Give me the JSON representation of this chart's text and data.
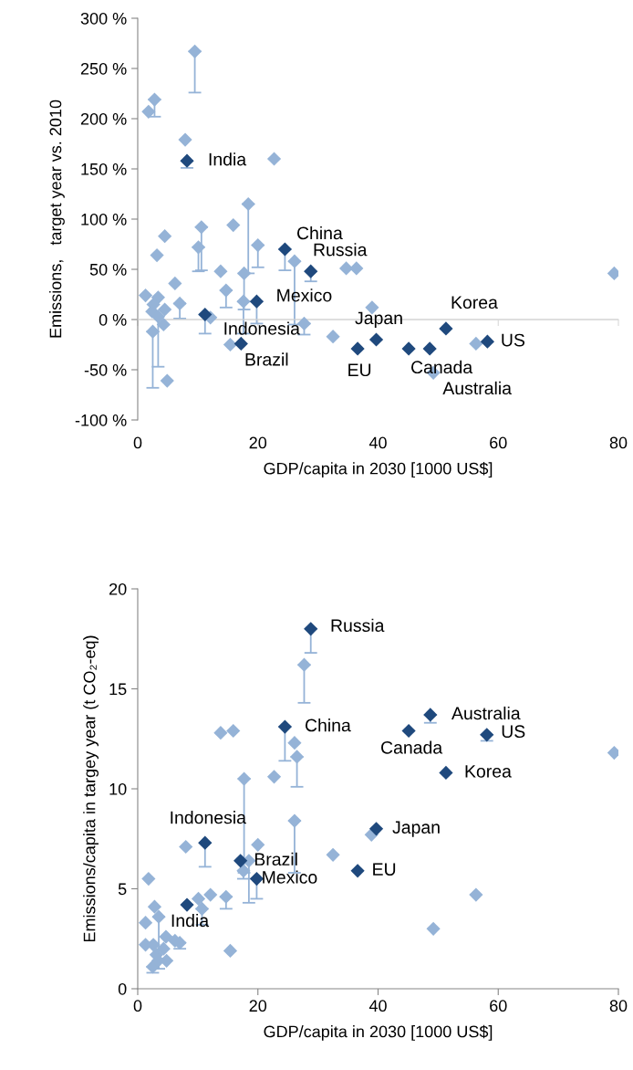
{
  "chart_data": [
    {
      "type": "scatter",
      "xlabel": "GDP/capita in 2030 [1000 US$]",
      "ylabel": "Emissions,   target year vs. 2010",
      "xlim": [
        0,
        80
      ],
      "xticks": [
        0,
        20,
        40,
        60,
        80
      ],
      "ylim": [
        -100,
        300
      ],
      "yticks": [
        {
          "value": -100,
          "label": "-100 %"
        },
        {
          "value": -50,
          "label": "-50 %"
        },
        {
          "value": 0,
          "label": "0 %"
        },
        {
          "value": 50,
          "label": "50 %"
        },
        {
          "value": 100,
          "label": "100 %"
        },
        {
          "value": 150,
          "label": "150 %"
        },
        {
          "value": 200,
          "label": "200 %"
        },
        {
          "value": 250,
          "label": "250 %"
        },
        {
          "value": 300,
          "label": "300 %"
        }
      ],
      "grid": false,
      "legend": false,
      "marker": "diamond",
      "ref_lines": [
        {
          "axis": "y",
          "value": 0,
          "color": "#d9d9d9"
        }
      ],
      "series": [
        {
          "color": "#95b3d7",
          "x": [
            9.5,
            2.8,
            1.8,
            7.9,
            22.7,
            18.4,
            15.9,
            10.6,
            10.1,
            4.5,
            3.2,
            20.0,
            26.1,
            13.8,
            17.7,
            6.2,
            14.7,
            17.6,
            1.3,
            7.0,
            3.4,
            2.6,
            4.5,
            2.4,
            3.4,
            4.3,
            2.5,
            12.1,
            15.4,
            4.9,
            34.7,
            36.4,
            79.3,
            39.0,
            27.7,
            32.5,
            49.2,
            56.3
          ],
          "values": [
            267,
            219,
            207,
            179,
            160,
            115,
            94,
            92,
            72,
            83,
            64,
            74,
            58,
            48,
            46,
            36,
            29,
            18,
            24,
            16,
            22,
            15,
            10,
            8,
            3,
            -5,
            -12,
            2,
            -25,
            -61,
            51,
            51,
            46,
            12,
            -4,
            -17,
            -53,
            -24
          ],
          "errors": [
            [
              226,
              267
            ],
            [
              202,
              219
            ],
            null,
            null,
            null,
            [
              46,
              115
            ],
            null,
            [
              49,
              92
            ],
            [
              48,
              72
            ],
            null,
            null,
            [
              52,
              74
            ],
            [
              -5,
              58
            ],
            null,
            [
              10,
              46
            ],
            null,
            [
              12,
              29
            ],
            [
              -14,
              18
            ],
            null,
            [
              1,
              16
            ],
            null,
            null,
            null,
            null,
            [
              -47,
              3
            ],
            null,
            [
              -68,
              -12
            ],
            null,
            null,
            null,
            null,
            null,
            null,
            null,
            [
              -15,
              -4
            ],
            null,
            null,
            null
          ]
        },
        {
          "color": "#1f497d",
          "x": [
            8.2,
            24.5,
            28.8,
            19.8,
            11.2,
            17.2,
            39.7,
            36.6,
            51.3,
            45.1,
            48.6,
            58.2
          ],
          "values": [
            158,
            70,
            48,
            18,
            5,
            -24,
            -20,
            -29,
            -9,
            -29,
            -29,
            -22
          ],
          "errors": [
            [
              151,
              158
            ],
            [
              49,
              70
            ],
            [
              38,
              48
            ],
            [
              -4,
              18
            ],
            [
              -14,
              5
            ],
            null,
            null,
            null,
            null,
            null,
            null,
            null
          ]
        }
      ],
      "annotations": [
        {
          "text": "India",
          "x": 8.2,
          "y": 158
        },
        {
          "text": "China",
          "x": 24.5,
          "y": 70
        },
        {
          "text": "Russia",
          "x": 28.8,
          "y": 48
        },
        {
          "text": "Mexico",
          "x": 19.8,
          "y": 18
        },
        {
          "text": "Indonesia",
          "x": 11.2,
          "y": 5
        },
        {
          "text": "Brazil",
          "x": 17.2,
          "y": -24
        },
        {
          "text": "Japan",
          "x": 39.7,
          "y": -20
        },
        {
          "text": "Korea",
          "x": 51.3,
          "y": -9
        },
        {
          "text": "US",
          "x": 58.2,
          "y": -22
        },
        {
          "text": "EU",
          "x": 36.6,
          "y": -29
        },
        {
          "text": "Canada",
          "x": 45.1,
          "y": -29
        },
        {
          "text": "Australia",
          "x": 48.6,
          "y": -29
        }
      ]
    },
    {
      "type": "scatter",
      "xlabel": "GDP/capita in 2030 [1000 US$]",
      "ylabel": "Emissions/capita in targey year (t CO₂-eq)",
      "xlim": [
        0,
        80
      ],
      "xticks": [
        0,
        20,
        40,
        60,
        80
      ],
      "ylim": [
        0,
        20
      ],
      "yticks": [
        0,
        5,
        10,
        15,
        20
      ],
      "grid": false,
      "legend": false,
      "marker": "diamond",
      "series": [
        {
          "color": "#95b3d7",
          "x": [
            27.7,
            26.1,
            26.5,
            79.3,
            38.9,
            26.1,
            13.8,
            15.9,
            22.7,
            17.7,
            8.0,
            20.0,
            18.5,
            17.6,
            1.8,
            10.1,
            10.7,
            12.1,
            14.7,
            15.4,
            2.8,
            1.3,
            3.5,
            1.3,
            2.6,
            4.7,
            6.2,
            7.0,
            4.3,
            3.1,
            2.5,
            4.8,
            3.4,
            49.2,
            56.3,
            32.5
          ],
          "values": [
            16.2,
            12.3,
            11.6,
            11.8,
            7.7,
            8.4,
            12.8,
            12.9,
            10.6,
            10.5,
            7.1,
            7.2,
            6.4,
            5.9,
            5.5,
            4.5,
            4.0,
            4.7,
            4.6,
            1.9,
            4.1,
            3.3,
            3.6,
            2.2,
            2.2,
            2.6,
            2.4,
            2.3,
            2.0,
            1.7,
            1.1,
            1.4,
            1.4,
            3.0,
            4.7,
            6.7
          ],
          "errors": [
            [
              14.3,
              16.2
            ],
            null,
            [
              10.1,
              11.6
            ],
            null,
            null,
            [
              5.8,
              8.4
            ],
            null,
            null,
            null,
            [
              5.8,
              10.5
            ],
            null,
            null,
            [
              4.3,
              6.4
            ],
            [
              5.5,
              5.9
            ],
            null,
            null,
            [
              3.2,
              4.0
            ],
            null,
            [
              4.0,
              4.6
            ],
            null,
            null,
            null,
            [
              1.0,
              3.6
            ],
            null,
            null,
            null,
            null,
            [
              2.0,
              2.3
            ],
            null,
            null,
            [
              0.8,
              1.1
            ],
            null,
            null,
            null,
            null,
            null
          ]
        },
        {
          "color": "#1f497d",
          "x": [
            28.8,
            24.5,
            48.7,
            45.1,
            58.1,
            51.3,
            39.7,
            11.2,
            17.1,
            19.8,
            8.2,
            36.6
          ],
          "values": [
            18.0,
            13.1,
            13.7,
            12.9,
            12.7,
            10.8,
            8.0,
            7.3,
            6.4,
            5.5,
            4.2,
            5.9
          ],
          "errors": [
            [
              16.8,
              18.0
            ],
            [
              11.4,
              13.1
            ],
            [
              13.3,
              13.7
            ],
            null,
            [
              12.4,
              12.7
            ],
            null,
            null,
            [
              6.1,
              7.3
            ],
            null,
            [
              4.5,
              5.5
            ],
            null,
            null
          ]
        }
      ],
      "annotations": [
        {
          "text": "Russia",
          "x": 28.8,
          "y": 18.0
        },
        {
          "text": "China",
          "x": 24.5,
          "y": 13.1
        },
        {
          "text": "Australia",
          "x": 48.7,
          "y": 13.7
        },
        {
          "text": "US",
          "x": 58.1,
          "y": 12.7
        },
        {
          "text": "Canada",
          "x": 45.1,
          "y": 12.9
        },
        {
          "text": "Korea",
          "x": 51.3,
          "y": 10.8
        },
        {
          "text": "Japan",
          "x": 39.7,
          "y": 8.0
        },
        {
          "text": "Indonesia",
          "x": 11.2,
          "y": 7.3
        },
        {
          "text": "Brazil",
          "x": 17.1,
          "y": 6.4
        },
        {
          "text": "Mexico",
          "x": 19.8,
          "y": 5.5
        },
        {
          "text": "India",
          "x": 8.2,
          "y": 4.2
        },
        {
          "text": "EU",
          "x": 36.6,
          "y": 5.9
        }
      ]
    }
  ]
}
